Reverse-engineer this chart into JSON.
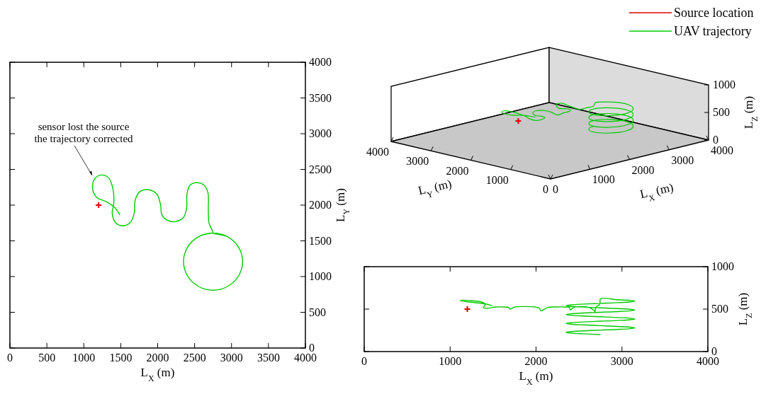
{
  "chart_data": [
    {
      "type": "line",
      "xlabel": "L$_{X}$ (m)",
      "ylabel": "L$_{Y}$ (m)",
      "xlim": [
        0,
        4000
      ],
      "ylim": [
        0,
        4000
      ],
      "xticks": [
        0,
        500,
        1000,
        1500,
        2000,
        2500,
        3000,
        3500,
        4000
      ],
      "yticks": [
        0,
        500,
        1000,
        1500,
        2000,
        2500,
        3000,
        3500,
        4000
      ],
      "legend": "top right",
      "marker": "none",
      "annotations": [
        "sensor lost the source\nthe trajectory corrected"
      ],
      "x": [
        1490,
        1417,
        1305,
        1177,
        1119,
        1145,
        1241,
        1337,
        1394,
        1407,
        1385,
        1432,
        1528,
        1624,
        1682,
        1695,
        1752,
        1880,
        1992,
        2040,
        2056,
        2136,
        2232,
        2343,
        2391,
        2398,
        2439,
        2520,
        2616,
        2679,
        2686,
        2695,
        2743,
        2750,
        2950,
        3096,
        3150,
        3096,
        2950,
        2750,
        2550,
        2404,
        2350,
        2404,
        2550,
        2750,
        2950,
        3096,
        3150,
        3096,
        2950,
        2750,
        2550,
        2404,
        2350,
        2404,
        2550,
        2750,
        2950,
        3096,
        3150,
        3096,
        2950,
        2750,
        2550,
        2404,
        2350,
        2404,
        2550,
        2750,
        2950,
        3096,
        3150,
        3096,
        2950,
        2750,
        2550,
        2404,
        2350,
        2404,
        2550,
        2750
      ],
      "series": [
        {
          "name": "Source location",
          "type": "scatter",
          "marker": "cross",
          "color": "#e00000",
          "x": [
            1200
          ],
          "values": [
            2000
          ]
        },
        {
          "name": "UAV trajectory",
          "color": "#00cc00",
          "values": [
            1861,
            1967,
            2049,
            2106,
            2231,
            2363,
            2422,
            2380,
            2231,
            2033,
            1885,
            1752,
            1710,
            1752,
            1885,
            2066,
            2182,
            2215,
            2149,
            2000,
            1868,
            1785,
            1769,
            1819,
            1950,
            2165,
            2280,
            2314,
            2290,
            2182,
            1934,
            1752,
            1637,
            1610,
            1556,
            1410,
            1210,
            1010,
            864,
            810,
            864,
            1010,
            1210,
            1410,
            1556,
            1610,
            1556,
            1410,
            1210,
            1010,
            864,
            810,
            864,
            1010,
            1210,
            1410,
            1556,
            1610,
            1556,
            1410,
            1210,
            1010,
            864,
            810,
            864,
            1010,
            1210,
            1410,
            1556,
            1610,
            1556,
            1410,
            1210,
            1010,
            864,
            810,
            864,
            1010,
            1210,
            1410,
            1556,
            1610
          ]
        }
      ]
    },
    {
      "type": "other",
      "xlabel": "L$_{X}$ (m)",
      "ylabel": "L$_{Y}$ (m)",
      "y2label": "L$_{Z}$ (m)",
      "annotations": [
        "0",
        "1000",
        "2000",
        "3000",
        "4000",
        "0",
        "1000",
        "2000",
        "3000",
        "4000",
        "0",
        "500",
        "1000"
      ]
    },
    {
      "type": "line",
      "xlabel": "L$_{X}$ (m)",
      "ylabel": "L$_{Z}$ (m)",
      "xlim": [
        0,
        4000
      ],
      "ylim": [
        0,
        1000
      ],
      "xticks": [
        0,
        1000,
        2000,
        3000,
        4000
      ],
      "yticks": [
        0,
        500,
        1000
      ],
      "marker": "none",
      "x": [
        1490,
        1417,
        1305,
        1177,
        1119,
        1145,
        1241,
        1337,
        1394,
        1407,
        1385,
        1432,
        1528,
        1624,
        1682,
        1695,
        1752,
        1880,
        1992,
        2040,
        2056,
        2136,
        2232,
        2343,
        2391,
        2398,
        2439,
        2520,
        2616,
        2679,
        2686,
        2695,
        2743,
        2750,
        2950,
        3096,
        3150,
        3096,
        2950,
        2750,
        2550,
        2404,
        2350,
        2404,
        2550,
        2750,
        2950,
        3096,
        3150,
        3096,
        2950,
        2750,
        2550,
        2404,
        2350,
        2404,
        2550,
        2750,
        2950,
        3096,
        3150,
        3096,
        2950,
        2750,
        2550,
        2404,
        2350,
        2404,
        2550,
        2750,
        2950,
        3096,
        3150,
        3096,
        2950,
        2750,
        2550,
        2404,
        2350,
        2404,
        2550,
        2750
      ],
      "series": [
        {
          "type": "scatter",
          "marker": "cross",
          "color": "#e00000",
          "x": [
            1200
          ],
          "values": [
            500
          ]
        },
        {
          "color": "#00cc00",
          "values": [
            540,
            560,
            575,
            590,
            600,
            605,
            600,
            590,
            570,
            545,
            520,
            510,
            525,
            525,
            520,
            500,
            525,
            530,
            525,
            510,
            480,
            520,
            525,
            525,
            520,
            490,
            520,
            530,
            520,
            480,
            460,
            520,
            560,
            620,
            611,
            603,
            594,
            585,
            576,
            568,
            559,
            550,
            541,
            533,
            524,
            515,
            506,
            498,
            489,
            480,
            471,
            463,
            454,
            445,
            436,
            428,
            419,
            410,
            401,
            393,
            384,
            375,
            366,
            358,
            349,
            340,
            331,
            323,
            314,
            305,
            296,
            288,
            279,
            270,
            261,
            253,
            244,
            235,
            226,
            218,
            209,
            200
          ]
        }
      ]
    }
  ]
}
